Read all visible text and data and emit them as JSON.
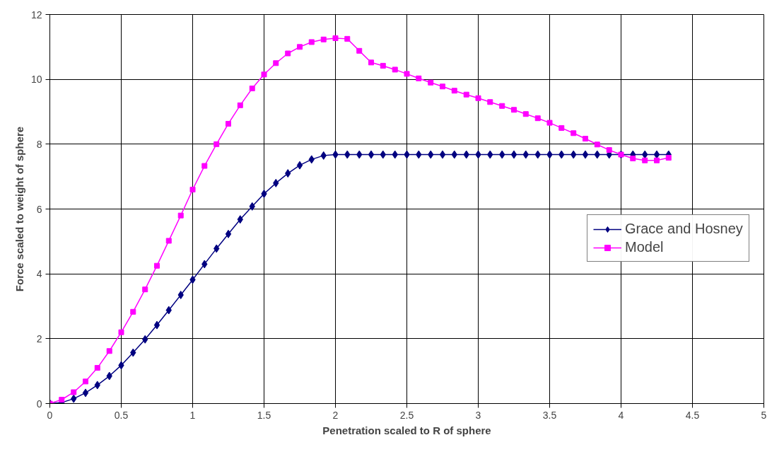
{
  "chart_data": {
    "type": "line",
    "xlabel": "Penetration scaled to R of sphere",
    "ylabel": "Force scaled to weight of sphere",
    "x": [
      0,
      0.083,
      0.167,
      0.25,
      0.333,
      0.417,
      0.5,
      0.583,
      0.667,
      0.75,
      0.833,
      0.917,
      1.0,
      1.083,
      1.167,
      1.25,
      1.333,
      1.417,
      1.5,
      1.583,
      1.667,
      1.75,
      1.833,
      1.917,
      2.0,
      2.083,
      2.167,
      2.25,
      2.333,
      2.417,
      2.5,
      2.583,
      2.667,
      2.75,
      2.833,
      2.917,
      3.0,
      3.083,
      3.167,
      3.25,
      3.333,
      3.417,
      3.5,
      3.583,
      3.667,
      3.75,
      3.833,
      3.917,
      4.0,
      4.083,
      4.167,
      4.25,
      4.333
    ],
    "series": [
      {
        "name": "Grace and Hosney",
        "color": "#000080",
        "marker": "diamond",
        "values": [
          0,
          0.03,
          0.15,
          0.33,
          0.57,
          0.85,
          1.18,
          1.57,
          1.98,
          2.42,
          2.88,
          3.35,
          3.82,
          4.3,
          4.78,
          5.23,
          5.68,
          6.08,
          6.47,
          6.8,
          7.1,
          7.35,
          7.53,
          7.65,
          7.68,
          7.68,
          7.68,
          7.68,
          7.68,
          7.68,
          7.68,
          7.68,
          7.68,
          7.68,
          7.68,
          7.68,
          7.68,
          7.68,
          7.68,
          7.68,
          7.68,
          7.68,
          7.68,
          7.68,
          7.68,
          7.68,
          7.68,
          7.68,
          7.68,
          7.68,
          7.68,
          7.68,
          7.68
        ]
      },
      {
        "name": "Model",
        "color": "#ff00ff",
        "marker": "square",
        "values": [
          0,
          0.12,
          0.35,
          0.68,
          1.1,
          1.62,
          2.2,
          2.83,
          3.52,
          4.25,
          5.02,
          5.8,
          6.6,
          7.33,
          8.0,
          8.63,
          9.2,
          9.72,
          10.15,
          10.5,
          10.8,
          11.0,
          11.15,
          11.23,
          11.27,
          11.25,
          10.88,
          10.52,
          10.42,
          10.3,
          10.17,
          10.03,
          9.9,
          9.78,
          9.65,
          9.53,
          9.42,
          9.3,
          9.18,
          9.06,
          8.93,
          8.8,
          8.66,
          8.5,
          8.34,
          8.17,
          7.99,
          7.82,
          7.68,
          7.56,
          7.5,
          7.5,
          7.58
        ]
      }
    ],
    "xlim": [
      0,
      5
    ],
    "xticks": [
      0,
      0.5,
      1,
      1.5,
      2,
      2.5,
      3,
      3.5,
      4,
      4.5,
      5
    ],
    "ylim": [
      0,
      12
    ],
    "yticks": [
      0,
      2,
      4,
      6,
      8,
      10,
      12
    ],
    "grid": true,
    "legend": "right",
    "line_style": "solid"
  }
}
